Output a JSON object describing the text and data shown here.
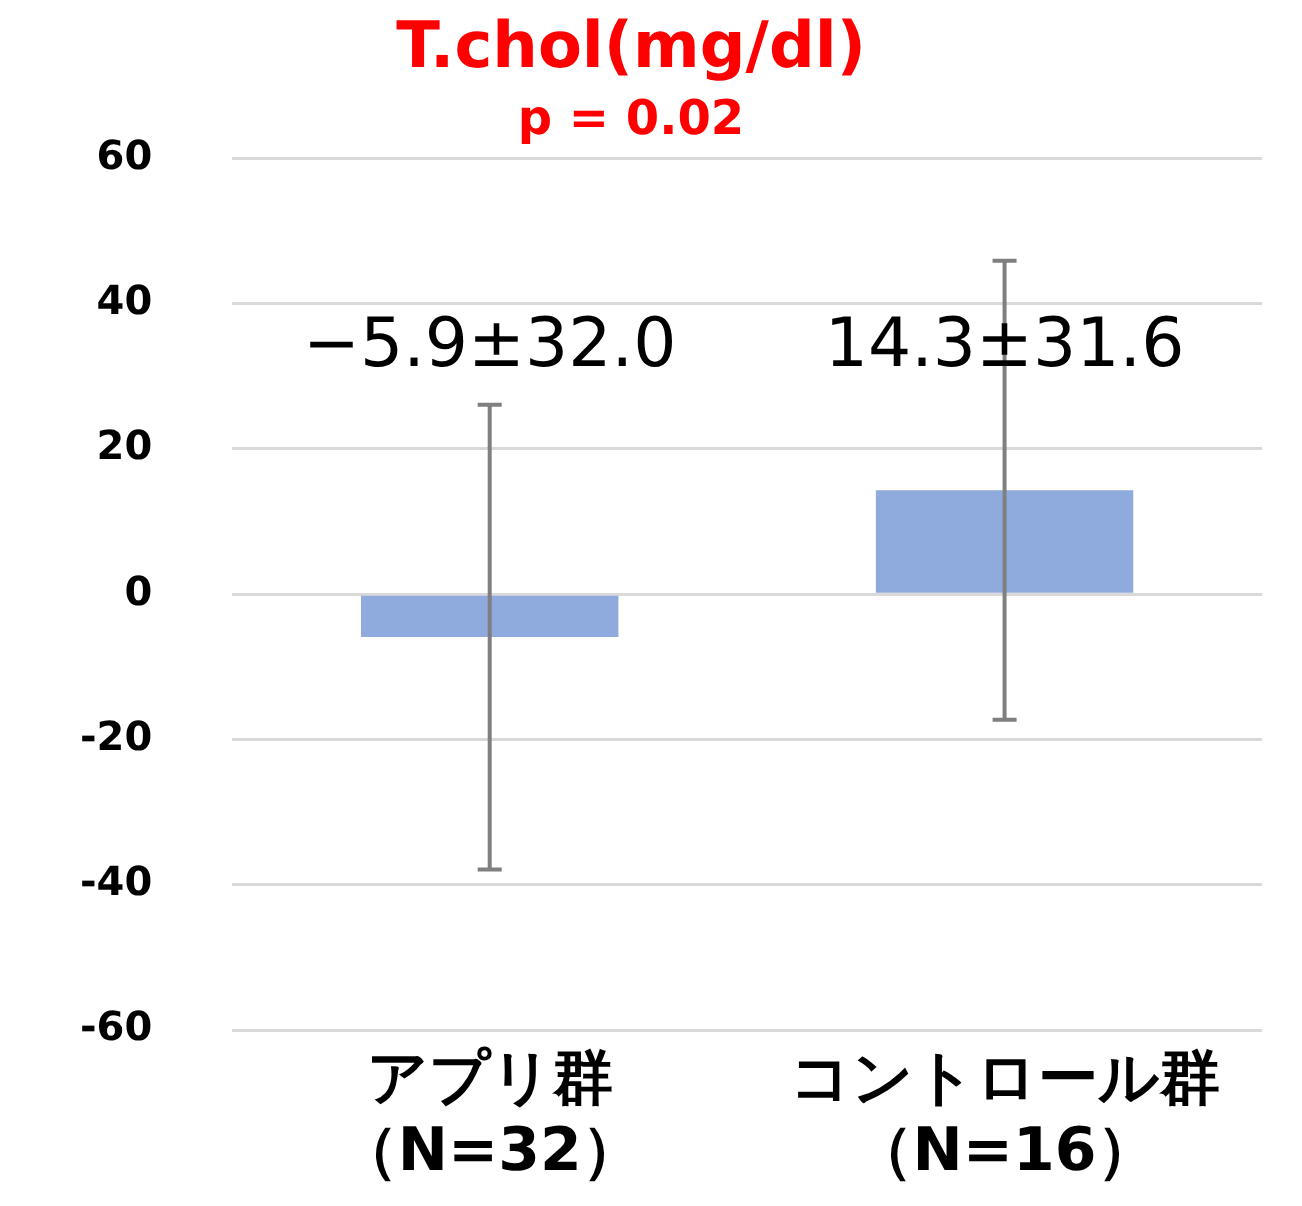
{
  "chart_data": {
    "type": "bar",
    "title": "T.chol(mg/dl)",
    "subtitle": "p = 0.02",
    "categories": [
      "アプリ群（N=32）",
      "コントロール群（N=16）"
    ],
    "values": [
      -5.9,
      14.3
    ],
    "errors": [
      32.0,
      31.6
    ],
    "value_labels": [
      "−5.9±32.0",
      "14.3±31.6"
    ],
    "color": "#8faadc",
    "ylim": [
      -60,
      60
    ],
    "yticks": [
      -60,
      -40,
      -20,
      0,
      20,
      40,
      60
    ],
    "grid": "y",
    "legend": false
  }
}
